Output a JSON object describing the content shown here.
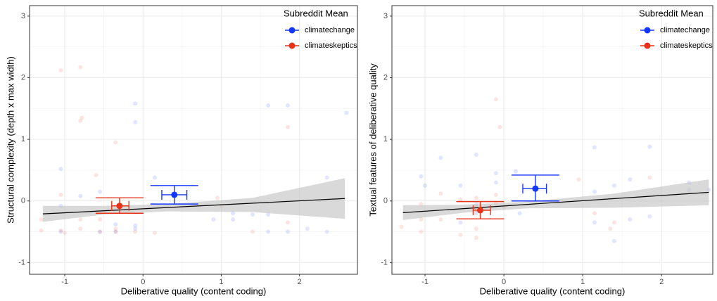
{
  "chart_data": [
    {
      "type": "scatter",
      "xlabel": "Deliberative quality (content coding)",
      "ylabel": "Structural complexity (depth x max width)",
      "xlim": [
        -1.45,
        2.74
      ],
      "ylim": [
        -1.19,
        3.17
      ],
      "xticks": [
        -1,
        0,
        1,
        2
      ],
      "yticks": [
        -1,
        0,
        1,
        2,
        3
      ],
      "grid": true,
      "legend_title": "Subreddit Mean",
      "legend_position": "top-right",
      "fit": {
        "color": "#000000",
        "band_color": "#bfbfbf",
        "x": [
          -1.28,
          2.58
        ],
        "y": [
          -0.21,
          0.04
        ],
        "band_x": [
          -1.28,
          -0.5,
          0.3,
          1.4,
          2.58
        ],
        "band_lower": [
          -0.34,
          -0.22,
          -0.17,
          -0.18,
          -0.29
        ],
        "band_upper": [
          -0.08,
          -0.08,
          -0.05,
          0.05,
          0.37
        ]
      },
      "series": [
        {
          "name": "climatechange",
          "color": "#1437ff",
          "x": [
            -1.05,
            -1.05,
            -0.8,
            -0.55,
            -0.35,
            -0.1,
            -0.1,
            -0.1,
            -0.1,
            0.15,
            0.9,
            1.15,
            1.15,
            1.4,
            1.6,
            1.6,
            1.6,
            1.85,
            1.85,
            2.1,
            2.35,
            2.35,
            2.6,
            -0.55,
            -0.35,
            -1.05
          ],
          "y": [
            0.52,
            -0.08,
            0.08,
            0.15,
            -0.38,
            1.58,
            1.28,
            -0.4,
            -0.45,
            0.38,
            -0.3,
            -0.3,
            -0.2,
            -0.22,
            1.55,
            -0.22,
            -0.5,
            1.55,
            -0.5,
            -0.45,
            -0.5,
            0.38,
            1.43,
            -0.5,
            -0.5,
            -0.5
          ],
          "mean": {
            "x": 0.4,
            "y": 0.1,
            "xmin": 0.24,
            "xmax": 0.56,
            "ymin": -0.05,
            "ymax": 0.25
          }
        },
        {
          "name": "climateskeptics",
          "color": "#e83219",
          "x": [
            -1.05,
            -0.8,
            -0.8,
            -0.78,
            -0.35,
            -0.6,
            -1.05,
            -0.8,
            -1.05,
            -1.0,
            -0.8,
            -0.55,
            -0.55,
            -0.35,
            -0.35,
            -0.1,
            0.15,
            1.0,
            1.85,
            1.85,
            1.4,
            0.95,
            -1.3,
            -1.3
          ],
          "y": [
            2.12,
            2.17,
            1.3,
            1.35,
            0.95,
            0.42,
            0.1,
            -0.3,
            -0.48,
            -0.52,
            -0.45,
            -0.5,
            -0.3,
            -0.45,
            -0.5,
            -0.5,
            -0.52,
            -0.08,
            1.2,
            -0.35,
            -0.5,
            0.05,
            -0.3,
            -0.48
          ],
          "mean": {
            "x": -0.3,
            "y": -0.08,
            "xmin": -0.4,
            "xmax": -0.18,
            "ymin": -0.2,
            "ymax": 0.05
          }
        }
      ]
    },
    {
      "type": "scatter",
      "xlabel": "Deliberative quality (content coding)",
      "ylabel": "Textual features of deliberative quality",
      "xlim": [
        -1.42,
        2.65
      ],
      "ylim": [
        -1.19,
        3.17
      ],
      "xticks": [
        -1,
        0,
        1,
        2
      ],
      "yticks": [
        -1,
        0,
        1,
        2,
        3
      ],
      "grid": true,
      "legend_title": "Subreddit Mean",
      "legend_position": "top-right",
      "fit": {
        "color": "#000000",
        "band_color": "#bfbfbf",
        "x": [
          -1.28,
          2.6
        ],
        "y": [
          -0.19,
          0.14
        ],
        "band_x": [
          -1.28,
          -0.5,
          0.3,
          1.4,
          2.6
        ],
        "band_lower": [
          -0.31,
          -0.19,
          -0.12,
          -0.11,
          -0.07
        ],
        "band_upper": [
          -0.07,
          -0.06,
          -0.01,
          0.12,
          0.35
        ]
      },
      "series": [
        {
          "name": "climatechange",
          "color": "#1437ff",
          "x": [
            -1.05,
            -1.0,
            -0.8,
            -0.55,
            -0.35,
            -0.35,
            -0.1,
            -0.1,
            0.15,
            0.2,
            1.15,
            1.15,
            1.4,
            1.4,
            1.6,
            1.6,
            1.85,
            1.85,
            2.35,
            2.35,
            2.6,
            -0.55,
            -0.35,
            1.15
          ],
          "y": [
            0.4,
            0.25,
            0.7,
            0.25,
            -0.05,
            0.75,
            0.45,
            0.3,
            0.48,
            -0.2,
            0.87,
            -0.35,
            0.25,
            -0.65,
            0.35,
            -0.3,
            0.88,
            -0.25,
            0.3,
            0.18,
            0.18,
            -0.35,
            -0.2,
            0.15
          ],
          "mean": {
            "x": 0.4,
            "y": 0.2,
            "xmin": 0.24,
            "xmax": 0.54,
            "ymin": 0.0,
            "ymax": 0.42
          }
        },
        {
          "name": "climateskeptics",
          "color": "#e83219",
          "x": [
            -1.3,
            -1.05,
            -1.05,
            -0.8,
            -0.8,
            -0.55,
            -0.55,
            -0.35,
            -0.35,
            -0.35,
            -0.1,
            -0.1,
            -0.05,
            0,
            0.95,
            1.15,
            1.35,
            1.4,
            1.85,
            -0.35,
            -1.05,
            -0.1
          ],
          "y": [
            -0.42,
            -0.3,
            -0.5,
            -0.3,
            0.12,
            -0.55,
            0.02,
            -0.1,
            0.05,
            -0.45,
            1.65,
            -0.05,
            1.2,
            -0.1,
            0.35,
            -0.2,
            -0.45,
            -0.35,
            0.38,
            -0.6,
            -0.05,
            0.1
          ],
          "mean": {
            "x": -0.3,
            "y": -0.15,
            "xmin": -0.39,
            "xmax": -0.17,
            "ymin": -0.29,
            "ymax": -0.01
          }
        }
      ]
    }
  ]
}
